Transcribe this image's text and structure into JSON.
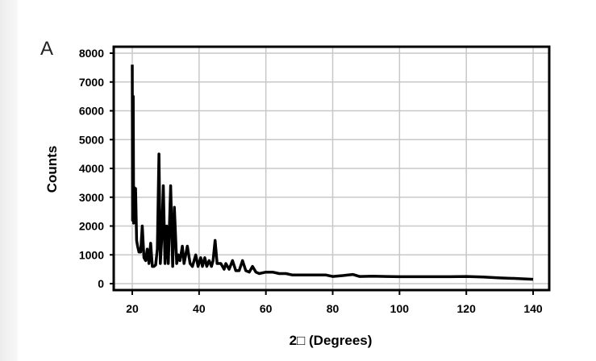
{
  "panel_label": "A",
  "chart_data": {
    "type": "line",
    "title": "",
    "xlabel": "2□ (Degrees)",
    "ylabel": "Counts",
    "xlim": [
      15,
      145
    ],
    "ylim": [
      -200,
      8300
    ],
    "xticks": [
      20,
      40,
      60,
      80,
      100,
      120,
      140
    ],
    "yticks": [
      0,
      1000,
      2000,
      3000,
      4000,
      5000,
      6000,
      7000,
      8000
    ],
    "grid": true,
    "legend": "none",
    "line_color": "#000000",
    "series": [
      {
        "x": [
          20,
          20.1,
          20.3,
          20.4,
          20.5,
          20.8,
          21,
          21.3,
          21.6,
          22,
          22.5,
          23,
          23.5,
          24,
          24.5,
          25,
          25.5,
          26,
          26.5,
          27,
          27.5,
          28,
          28.4,
          28.8,
          29.3,
          29.8,
          30.3,
          30.8,
          31.5,
          32.1,
          32.6,
          33.3,
          33.8,
          34.3,
          35,
          35.5,
          36.5,
          37.3,
          38,
          39,
          39.7,
          40.5,
          41,
          41.7,
          42.3,
          43,
          43.7,
          44.2,
          44.8,
          45.4,
          46.5,
          47.5,
          48,
          49,
          50,
          51,
          52,
          53,
          54,
          55,
          56,
          57,
          58,
          60,
          62,
          64,
          66,
          68,
          70,
          72,
          75,
          78,
          80,
          83,
          86,
          88,
          92,
          96,
          100,
          105,
          110,
          115,
          120,
          125,
          130,
          135,
          140
        ],
        "y": [
          7600,
          2200,
          6500,
          2100,
          3350,
          2200,
          3300,
          1500,
          1300,
          1100,
          1100,
          2000,
          900,
          800,
          1200,
          700,
          1400,
          600,
          600,
          650,
          1200,
          4500,
          700,
          1500,
          3400,
          700,
          2000,
          700,
          3400,
          600,
          2650,
          700,
          1000,
          800,
          1300,
          700,
          1300,
          700,
          600,
          1000,
          600,
          900,
          600,
          900,
          600,
          800,
          600,
          800,
          1500,
          700,
          700,
          500,
          700,
          500,
          800,
          450,
          450,
          800,
          450,
          400,
          600,
          400,
          350,
          400,
          400,
          350,
          350,
          300,
          300,
          300,
          300,
          300,
          250,
          280,
          320,
          250,
          260,
          250,
          240,
          240,
          240,
          240,
          250,
          230,
          200,
          180,
          150
        ]
      }
    ]
  }
}
